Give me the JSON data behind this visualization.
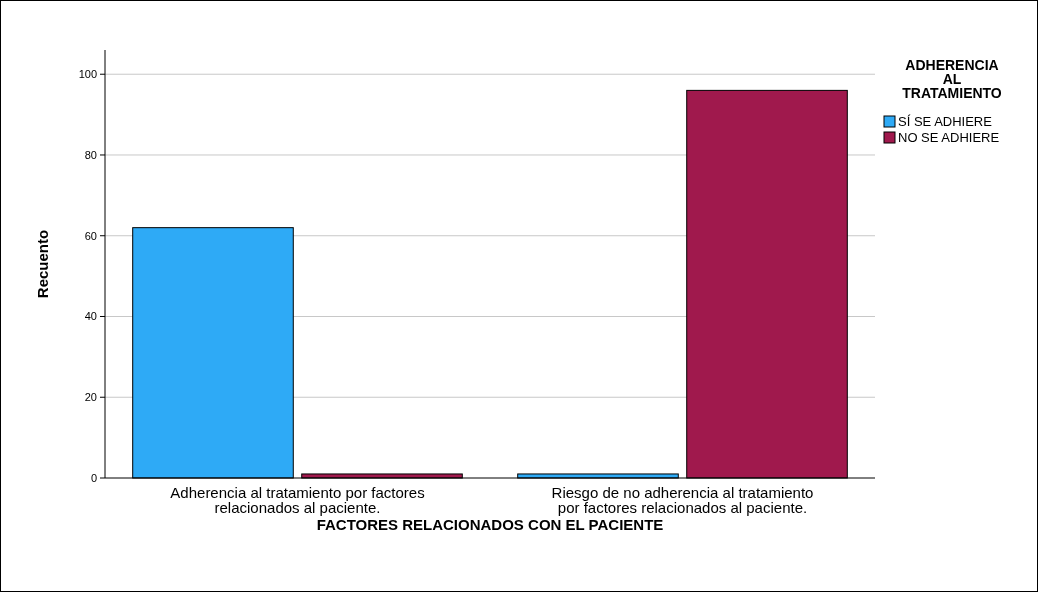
{
  "chart_data": {
    "type": "bar",
    "xlabel": "FACTORES RELACIONADOS CON EL PACIENTE",
    "ylabel": "Recuento",
    "legend_title": "ADHERENCIA AL TRATAMIENTO",
    "categories": [
      "Adherencia al tratamiento por factores relacionados al paciente.",
      "Riesgo de no adherencia al tratamiento por factores relacionados al paciente."
    ],
    "series": [
      {
        "name": "SÍ SE ADHIERE",
        "color": "#2eaaf6",
        "values": [
          62,
          1
        ]
      },
      {
        "name": "NO SE ADHIERE",
        "color": "#a0194d",
        "values": [
          1,
          96
        ]
      }
    ],
    "ylim": [
      0,
      106
    ],
    "yticks": [
      0,
      20,
      40,
      60,
      80,
      100
    ],
    "grid": "y",
    "legend": "top right"
  }
}
